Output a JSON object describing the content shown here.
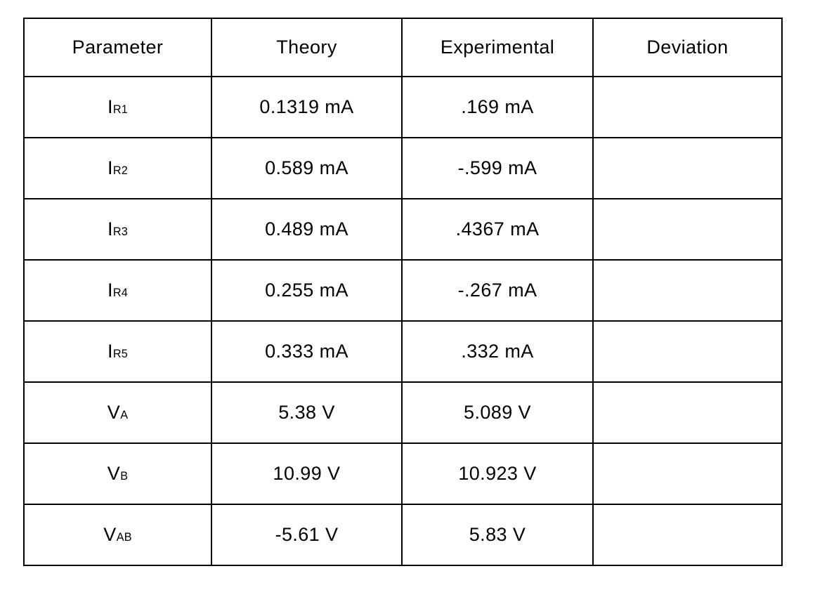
{
  "table": {
    "headers": [
      "Parameter",
      "Theory",
      "Experimental",
      "Deviation"
    ],
    "rows": [
      {
        "param_base": "I",
        "param_sub": "R1",
        "theory": "0.1319 mA",
        "experimental": ".169 mA",
        "deviation": ""
      },
      {
        "param_base": "I",
        "param_sub": "R2",
        "theory": "0.589 mA",
        "experimental": "-.599 mA",
        "deviation": ""
      },
      {
        "param_base": "I",
        "param_sub": "R3",
        "theory": "0.489 mA",
        "experimental": ".4367 mA",
        "deviation": ""
      },
      {
        "param_base": "I",
        "param_sub": "R4",
        "theory": "0.255 mA",
        "experimental": "-.267 mA",
        "deviation": ""
      },
      {
        "param_base": "I",
        "param_sub": "R5",
        "theory": "0.333 mA",
        "experimental": ".332 mA",
        "deviation": ""
      },
      {
        "param_base": "V",
        "param_sub": "A",
        "theory": "5.38 V",
        "experimental": "5.089 V",
        "deviation": ""
      },
      {
        "param_base": "V",
        "param_sub": "B",
        "theory": "10.99 V",
        "experimental": "10.923 V",
        "deviation": ""
      },
      {
        "param_base": "V",
        "param_sub": "AB",
        "theory": "-5.61 V",
        "experimental": "5.83 V",
        "deviation": ""
      }
    ]
  },
  "colors": {
    "border": "#000000",
    "text": "#000000",
    "background": "#ffffff"
  }
}
